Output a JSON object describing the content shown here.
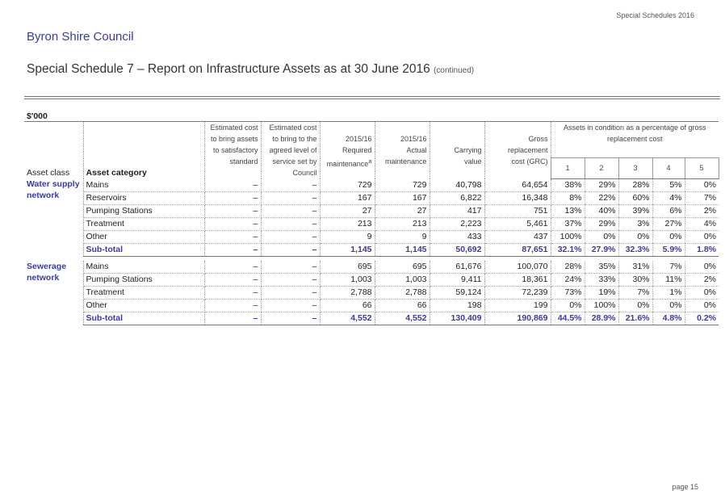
{
  "header": {
    "top_right": "Special Schedules 2016",
    "council": "Byron Shire Council",
    "title": "Special Schedule 7 – Report on Infrastructure Assets as at 30 June 2016",
    "title_suffix": "(continued)",
    "units": "$'000"
  },
  "table": {
    "col_asset_class": "Asset class",
    "col_asset_category": "Asset category",
    "col_est_satisfactory": [
      "Estimated cost",
      "to bring assets",
      "to satisfactory",
      "standard"
    ],
    "col_est_agreed": [
      "Estimated cost",
      "to bring to the",
      "agreed level of",
      "service set by",
      "Council"
    ],
    "col_required": [
      "2015/16",
      "Required",
      "maintenance"
    ],
    "col_required_sup": "a",
    "col_actual": [
      "2015/16",
      "Actual",
      "maintenance"
    ],
    "col_carrying": [
      "Carrying",
      "value"
    ],
    "col_grc": [
      "Gross",
      "replacement",
      "cost (GRC)"
    ],
    "col_condition": "Assets in condition as a percentage of gross replacement cost",
    "condition_levels": [
      "1",
      "2",
      "3",
      "4",
      "5"
    ],
    "groups": [
      {
        "asset_class": [
          "Water supply",
          "network"
        ],
        "rows": [
          {
            "category": "Mains",
            "est_sat": "–",
            "est_agreed": "–",
            "required": "729",
            "actual": "729",
            "carrying": "40,798",
            "grc": "64,654",
            "c1": "38%",
            "c2": "29%",
            "c3": "28%",
            "c4": "5%",
            "c5": "0%"
          },
          {
            "category": "Reservoirs",
            "est_sat": "–",
            "est_agreed": "–",
            "required": "167",
            "actual": "167",
            "carrying": "6,822",
            "grc": "16,348",
            "c1": "8%",
            "c2": "22%",
            "c3": "60%",
            "c4": "4%",
            "c5": "7%"
          },
          {
            "category": "Pumping Stations",
            "est_sat": "–",
            "est_agreed": "–",
            "required": "27",
            "actual": "27",
            "carrying": "417",
            "grc": "751",
            "c1": "13%",
            "c2": "40%",
            "c3": "39%",
            "c4": "6%",
            "c5": "2%"
          },
          {
            "category": "Treatment",
            "est_sat": "–",
            "est_agreed": "–",
            "required": "213",
            "actual": "213",
            "carrying": "2,223",
            "grc": "5,461",
            "c1": "37%",
            "c2": "29%",
            "c3": "3%",
            "c4": "27%",
            "c5": "4%"
          },
          {
            "category": "Other",
            "est_sat": "–",
            "est_agreed": "–",
            "required": "9",
            "actual": "9",
            "carrying": "433",
            "grc": "437",
            "c1": "100%",
            "c2": "0%",
            "c3": "0%",
            "c4": "0%",
            "c5": "0%"
          }
        ],
        "subtotal": {
          "category": "Sub-total",
          "est_sat": "–",
          "est_agreed": "–",
          "required": "1,145",
          "actual": "1,145",
          "carrying": "50,692",
          "grc": "87,651",
          "c1": "32.1%",
          "c2": "27.9%",
          "c3": "32.3%",
          "c4": "5.9%",
          "c5": "1.8%"
        }
      },
      {
        "asset_class": [
          "Sewerage",
          "network"
        ],
        "rows": [
          {
            "category": "Mains",
            "est_sat": "–",
            "est_agreed": "–",
            "required": "695",
            "actual": "695",
            "carrying": "61,676",
            "grc": "100,070",
            "c1": "28%",
            "c2": "35%",
            "c3": "31%",
            "c4": "7%",
            "c5": "0%"
          },
          {
            "category": "Pumping Stations",
            "est_sat": "–",
            "est_agreed": "–",
            "required": "1,003",
            "actual": "1,003",
            "carrying": "9,411",
            "grc": "18,361",
            "c1": "24%",
            "c2": "33%",
            "c3": "30%",
            "c4": "11%",
            "c5": "2%"
          },
          {
            "category": "Treatment",
            "est_sat": "–",
            "est_agreed": "–",
            "required": "2,788",
            "actual": "2,788",
            "carrying": "59,124",
            "grc": "72,239",
            "c1": "73%",
            "c2": "19%",
            "c3": "7%",
            "c4": "1%",
            "c5": "0%"
          },
          {
            "category": "Other",
            "est_sat": "–",
            "est_agreed": "–",
            "required": "66",
            "actual": "66",
            "carrying": "198",
            "grc": "199",
            "c1": "0%",
            "c2": "100%",
            "c3": "0%",
            "c4": "0%",
            "c5": "0%"
          }
        ],
        "subtotal": {
          "category": "Sub-total",
          "est_sat": "–",
          "est_agreed": "–",
          "required": "4,552",
          "actual": "4,552",
          "carrying": "130,409",
          "grc": "190,869",
          "c1": "44.5%",
          "c2": "28.9%",
          "c3": "21.6%",
          "c4": "4.8%",
          "c5": "0.2%"
        }
      }
    ]
  },
  "footer": {
    "page": "page 15"
  },
  "colors": {
    "accent": "#3b3b9a",
    "text": "#222222"
  }
}
